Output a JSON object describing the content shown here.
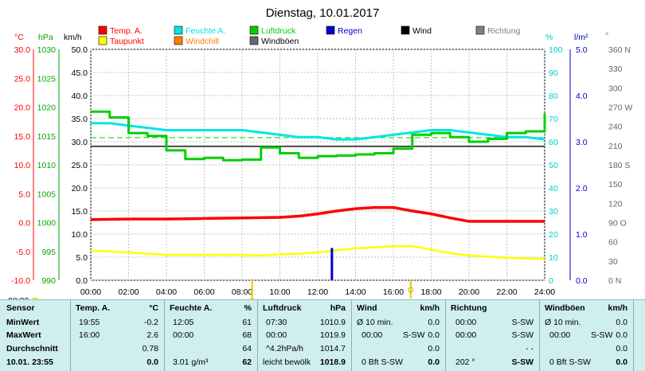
{
  "chart_data": {
    "type": "line",
    "title": "Dienstag, 10.01.2017",
    "axis_units": {
      "temp": "°C",
      "hpa": "hPa",
      "kmh": "km/h",
      "pct": "%",
      "rain": "l/m²",
      "dir": "°"
    },
    "x_ticks": [
      "00:00",
      "02:00",
      "04:00",
      "06:00",
      "08:00",
      "10:00",
      "12:00",
      "14:00",
      "16:00",
      "18:00",
      "20:00",
      "22:00",
      "24:00"
    ],
    "axes": {
      "temp": {
        "ticks": [
          "30.0",
          "25.0",
          "20.0",
          "15.0",
          "10.0",
          "5.0",
          "0.0",
          "-5.0",
          "-10.0"
        ],
        "ylim": [
          -10,
          30
        ],
        "color": "#ff0000"
      },
      "hpa": {
        "ticks": [
          "1030",
          "1025",
          "1020",
          "1015",
          "1010",
          "1005",
          "1000",
          "995",
          "990"
        ],
        "ylim": [
          990,
          1030
        ],
        "color": "#00aa00"
      },
      "kmh": {
        "ticks": [
          "50.0",
          "45.0",
          "40.0",
          "35.0",
          "30.0",
          "25.0",
          "20.0",
          "15.0",
          "10.0",
          "5.0",
          "0.0"
        ],
        "ylim": [
          0,
          50
        ],
        "color": "#000000"
      },
      "pct": {
        "ticks": [
          "100",
          "90",
          "80",
          "70",
          "60",
          "50",
          "40",
          "30",
          "20",
          "10",
          "0"
        ],
        "ylim": [
          0,
          100
        ],
        "color": "#00cccc"
      },
      "rain": {
        "ticks": [
          "5.0",
          "4.0",
          "3.0",
          "2.0",
          "1.0",
          "0.0"
        ],
        "ylim": [
          0,
          5
        ],
        "color": "#0000cc"
      },
      "dir": {
        "ticks": [
          "360 N",
          "330",
          "300",
          "270 W",
          "240",
          "210",
          "180 S",
          "150",
          "120",
          "90 O",
          "60",
          "30",
          "0 N"
        ],
        "ylim": [
          0,
          360
        ],
        "color": "#666666"
      }
    },
    "legend": [
      {
        "label": "Temp. A.",
        "color": "#ff0000"
      },
      {
        "label": "Feuchte A.",
        "color": "#00e5e5"
      },
      {
        "label": "Luftdruck",
        "color": "#00d000"
      },
      {
        "label": "Regen",
        "color": "#0000cc"
      },
      {
        "label": "Wind",
        "color": "#000000"
      },
      {
        "label": "Richtung",
        "color": "#808080"
      },
      {
        "label": "Taupunkt",
        "color": "#ffff00"
      },
      {
        "label": "Windchill",
        "color": "#ff8000"
      },
      {
        "label": "Windböen",
        "color": "#666666"
      }
    ],
    "series": [
      {
        "name": "Temp. A.",
        "unit": "°C",
        "color": "#ff0000",
        "x": [
          0,
          2,
          4,
          6,
          8,
          10,
          11,
          12,
          13,
          14,
          15,
          16,
          17,
          18,
          19,
          20,
          22,
          24
        ],
        "y": [
          0.5,
          0.6,
          0.6,
          0.7,
          0.8,
          0.9,
          1.1,
          1.5,
          2.0,
          2.4,
          2.6,
          2.6,
          2.0,
          1.5,
          0.8,
          0.2,
          0.2,
          0.2
        ]
      },
      {
        "name": "Taupunkt",
        "unit": "°C",
        "color": "#ffff00",
        "x": [
          0,
          1,
          2,
          3,
          4,
          6,
          8,
          9,
          10,
          11,
          12,
          13,
          14,
          15,
          16,
          17,
          18,
          19,
          20,
          21,
          22,
          23,
          24
        ],
        "y": [
          -4.9,
          -5.0,
          -5.2,
          -5.4,
          -5.6,
          -5.6,
          -5.6,
          -5.7,
          -5.5,
          -5.4,
          -5.2,
          -4.8,
          -4.5,
          -4.3,
          -4.1,
          -4.1,
          -4.7,
          -5.3,
          -5.7,
          -5.9,
          -6.1,
          -6.2,
          -6.3
        ]
      },
      {
        "name": "Feuchte A.",
        "unit": "%",
        "color": "#00e5e5",
        "x": [
          0,
          1,
          2,
          3,
          4,
          5,
          6,
          7,
          8,
          9,
          10,
          11,
          12,
          13,
          14,
          15,
          16,
          17,
          18,
          19,
          20,
          21,
          22,
          23,
          24
        ],
        "y": [
          68,
          68,
          67,
          66,
          65,
          65,
          65,
          65,
          65,
          64,
          63,
          62,
          62,
          61,
          61,
          62,
          63,
          64,
          65,
          65,
          64,
          63,
          62,
          62,
          61
        ]
      },
      {
        "name": "Luftdruck",
        "unit": "hPa",
        "color": "#00d000",
        "x": [
          0,
          1,
          2,
          3,
          4,
          5,
          6,
          7,
          8,
          9,
          10,
          11,
          12,
          13,
          14,
          15,
          16,
          17,
          18,
          19,
          20,
          21,
          22,
          23,
          24
        ],
        "y": [
          1019.2,
          1018.2,
          1015.5,
          1015.0,
          1012.5,
          1011.0,
          1011.2,
          1010.8,
          1010.9,
          1013.0,
          1012.0,
          1011.2,
          1011.5,
          1011.6,
          1011.8,
          1012.0,
          1012.8,
          1015.2,
          1015.5,
          1014.8,
          1014.0,
          1014.5,
          1015.5,
          1015.8,
          1018.9
        ]
      },
      {
        "name": "Regen",
        "unit": "l/m²",
        "color": "#0000cc",
        "x": [
          12.75
        ],
        "y": [
          0.7
        ]
      }
    ],
    "reference_lines": [
      {
        "name": "Luftdruck Durchschnitt",
        "axis": "hpa",
        "value": 1014.7,
        "color": "#00d000",
        "style": "dashed"
      },
      {
        "name": "Feuchte A. Durchschnitt",
        "axis": "pct",
        "value": 58,
        "color": "#000000",
        "style": "solid"
      }
    ],
    "markers": {
      "sunrise": "08:32",
      "sunset": "16:55"
    }
  },
  "table": {
    "columns": [
      {
        "header": [
          "Sensor",
          ""
        ],
        "rows": [
          [
            "MinWert",
            ""
          ],
          [
            "MaxWert",
            ""
          ],
          [
            "Durchschnitt",
            ""
          ],
          [
            "10.01. 23:55",
            ""
          ]
        ]
      },
      {
        "header": [
          "Temp. A.",
          "°C"
        ],
        "rows": [
          [
            "19:55",
            "-0.2"
          ],
          [
            "16:00",
            "2.6"
          ],
          [
            "",
            "0.78"
          ],
          [
            "",
            "0.0"
          ]
        ]
      },
      {
        "header": [
          "Feuchte A.",
          "%"
        ],
        "rows": [
          [
            "12:05",
            "61"
          ],
          [
            "00:00",
            "68"
          ],
          [
            "",
            "64"
          ],
          [
            "3.01 g/m³",
            "62"
          ]
        ]
      },
      {
        "header": [
          "Luftdruck",
          "hPa"
        ],
        "rows": [
          [
            "07:30",
            "1010.9"
          ],
          [
            "00:00",
            "1019.9"
          ],
          [
            "^4.2hPa/h",
            "1014.7"
          ],
          [
            "leicht bewölk",
            "1018.9"
          ]
        ]
      },
      {
        "header": [
          "Wind",
          "km/h"
        ],
        "rows": [
          [
            "Ø 10 min.",
            "0.0"
          ],
          [
            "00:00",
            "0.0"
          ],
          [
            "",
            "0.0"
          ],
          [
            "",
            "0.0"
          ]
        ],
        "extra": [
          "",
          "S-SW",
          "",
          "0 Bft S-SW"
        ]
      },
      {
        "header": [
          "Richtung",
          ""
        ],
        "rows": [
          [
            "00:00",
            "S-SW"
          ],
          [
            "00:00",
            "S-SW"
          ],
          [
            "",
            "- -"
          ],
          [
            "202 °",
            "S-SW"
          ]
        ]
      },
      {
        "header": [
          "Windböen",
          "km/h"
        ],
        "rows": [
          [
            "Ø 10 min.",
            "0.0"
          ],
          [
            "00:00",
            "0.0"
          ],
          [
            "",
            "0.0"
          ],
          [
            "",
            "0.0"
          ]
        ],
        "extra": [
          "",
          "S-SW",
          "",
          "0 Bft S-SW"
        ]
      }
    ]
  }
}
